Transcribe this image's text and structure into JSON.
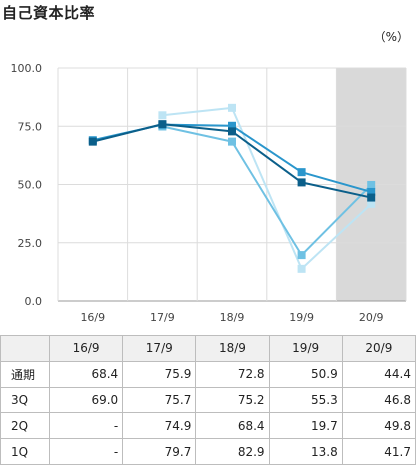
{
  "title": "自己資本比率",
  "unit": "（%）",
  "chart_data": {
    "type": "line",
    "categories": [
      "16/9",
      "17/9",
      "18/9",
      "19/9",
      "20/9"
    ],
    "ylim": [
      0,
      100
    ],
    "yticks": [
      "0.0",
      "25.0",
      "50.0",
      "75.0",
      "100.0"
    ],
    "highlight_category": "20/9",
    "grid": true,
    "series": [
      {
        "name": "1Q",
        "color": "#bde4f4",
        "values": [
          null,
          79.7,
          82.9,
          13.8,
          41.7
        ]
      },
      {
        "name": "2Q",
        "color": "#6fc1e3",
        "values": [
          null,
          74.9,
          68.4,
          19.7,
          49.8
        ]
      },
      {
        "name": "3Q",
        "color": "#2a96cc",
        "values": [
          69.0,
          75.7,
          75.2,
          55.3,
          46.8
        ]
      },
      {
        "name": "通期",
        "color": "#0b5f8a",
        "values": [
          68.4,
          75.9,
          72.8,
          50.9,
          44.4
        ]
      }
    ]
  },
  "table": {
    "corner": "",
    "headers": [
      "16/9",
      "17/9",
      "18/9",
      "19/9",
      "20/9"
    ],
    "rows": [
      {
        "label": "通期",
        "cells": [
          "68.4",
          "75.9",
          "72.8",
          "50.9",
          "44.4"
        ]
      },
      {
        "label": "3Q",
        "cells": [
          "69.0",
          "75.7",
          "75.2",
          "55.3",
          "46.8"
        ]
      },
      {
        "label": "2Q",
        "cells": [
          "-",
          "74.9",
          "68.4",
          "19.7",
          "49.8"
        ]
      },
      {
        "label": "1Q",
        "cells": [
          "-",
          "79.7",
          "82.9",
          "13.8",
          "41.7"
        ]
      }
    ]
  }
}
